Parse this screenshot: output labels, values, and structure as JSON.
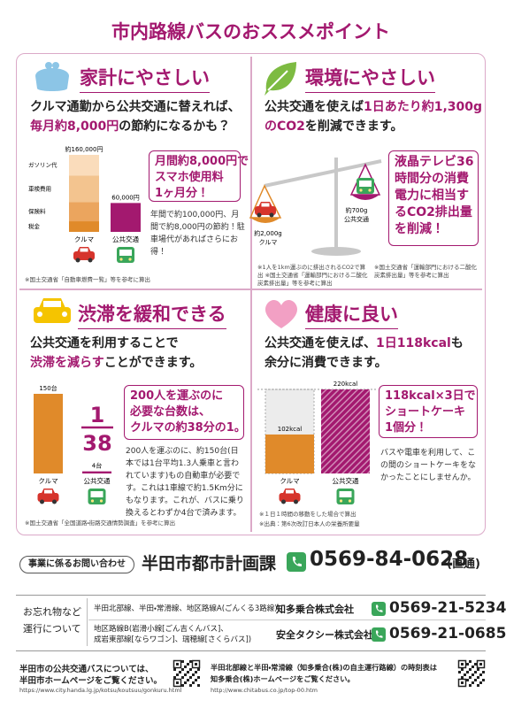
{
  "title": "市内路線バスのおススメポイント",
  "panels": [
    {
      "heading": "家計にやさしい",
      "body": [
        [
          "クルマ通勤から公共交通に替えれば、"
        ],
        [
          {
            "text": "毎月約8,000円",
            "color": "#a3196f"
          },
          "の節約になるかも？"
        ]
      ],
      "chart": {
        "type": "bar",
        "categories": [
          "クルマ",
          "公共交通"
        ],
        "values": [
          160000,
          60000
        ],
        "value_labels": [
          "約160,000円",
          "60,000円"
        ],
        "colors": [
          "#fbe6cf",
          "#a3196f"
        ],
        "segments": [
          {
            "name": "税金",
            "value": 22000,
            "color": "#e08a2a"
          },
          {
            "name": "保険料",
            "value": 40000,
            "color": "#eba55e"
          },
          {
            "name": "車検費用",
            "value": 55000,
            "color": "#f3c48f"
          },
          {
            "name": "ガソリン代",
            "value": 43000,
            "color": "#fadcbb"
          }
        ]
      },
      "callout": [
        "月間約8,000円で",
        "スマホ使用料",
        "1ヶ月分！"
      ],
      "note": "年間で約100,000円、月間で約8,000円の節約！駐車場代があればさらにお得！",
      "footnotes": [
        "※国土交通省「自動車燃費一覧」等を参考に算出"
      ]
    },
    {
      "heading": "環境にやさしい",
      "body": [
        [
          "公共交通を使えば",
          {
            "text": "1日あたり約1,300g",
            "color": "#a3196f"
          }
        ],
        [
          {
            "text": "のCO2",
            "color": "#a3196f"
          },
          "を削減できます。"
        ]
      ],
      "balance": {
        "left": [
          "約2,000g",
          "クルマ"
        ],
        "right": [
          "約700g",
          "公共交通"
        ]
      },
      "callout": [
        "液晶テレビ36",
        "時間分の消費",
        "電力に相当す",
        "るCO2排出量",
        "を削減！"
      ],
      "footnotes": [
        "※1人を1km運ぶのに排出されるCO2で算出 ※国土交通省「運輸部門における二酸化炭素排出量」等を参考に算出",
        "※国土交通省「運輸部門における二酸化炭素排出量」等を参考に算出"
      ]
    },
    {
      "heading": "渋滞を緩和できる",
      "body": [
        [
          "公共交通を利用することで"
        ],
        [
          {
            "text": "渋滞を減らす",
            "color": "#a3196f"
          },
          "ことができます。"
        ]
      ],
      "chart": {
        "type": "bar",
        "categories": [
          "クルマ",
          "公共交通"
        ],
        "values": [
          150,
          4
        ],
        "value_labels": [
          "150台",
          "4台"
        ],
        "colors": [
          "#e08a2a",
          "#a3196f"
        ],
        "fraction": [
          "1",
          "38"
        ]
      },
      "callout": [
        "200人を運ぶのに",
        "必要な台数は、",
        "クルマの約38分の1。"
      ],
      "note": "200人を運ぶのに、約150台(日本では1台平均1.3人乗車と言われています)もの自動車が必要です。これは1車線で約1.5Km分にもなります。これが、バスに乗り換えるとわずか4台で済みます。",
      "footnotes": [
        "※国土交通省「全国道路・街路交通情勢調査」を参考に算出"
      ]
    },
    {
      "heading": "健康に良い",
      "body": [
        [
          "公共交通を使えば、",
          {
            "text": "1日118kcal",
            "color": "#a3196f"
          },
          "も"
        ],
        [
          "余分に消費できます。"
        ]
      ],
      "chart": {
        "type": "bar",
        "categories": [
          "クルマ",
          "公共交通"
        ],
        "values": [
          102,
          220
        ],
        "value_labels": [
          "102kcal",
          "220kcal"
        ],
        "colors": [
          "#e08a2a",
          "#a3196f"
        ]
      },
      "callout": [
        "118kcal×3日で",
        "ショートケーキ",
        "1個分！"
      ],
      "note": "バスや電車を利用して、この間のショートケーキをなかったことにしませんか。",
      "footnotes": [
        "※１日１時間の移動をした場合で算出",
        "※出典：第6次改訂日本人の栄養所要量"
      ]
    }
  ],
  "contact": {
    "label": "事業に係るお問い合わせ",
    "office": "半田市都市計画課",
    "phone": "0569-84-0628",
    "phone_note": "(直通)"
  },
  "operators": {
    "label": [
      "お忘れ物など",
      "運行について"
    ],
    "rows": [
      {
        "routes": [
          "半田北部線、半田・常滑線、地区路線A(ごんくる3路線)"
        ],
        "company": "知多乗合株式会社",
        "phone": "0569-21-5234"
      },
      {
        "routes": [
          "地区路線B(岩滑小線[ごん吉くんバス]、",
          "成岩東部線[ならワゴン]、瑞穂線[さくらバス])"
        ],
        "company": "安全タクシー株式会社",
        "phone": "0569-21-0685"
      }
    ]
  },
  "footer": {
    "left": {
      "text": [
        "半田市の公共交通バスについては、",
        "半田市ホームページをご覧ください。"
      ],
      "url": "https://www.city.handa.lg.jp/kotsu/koutsuu/gonkuru.html"
    },
    "right": {
      "text": [
        "半田北部線と半田・常滑線（知多乗合(株)の自主運行路線）の時刻表は",
        "知多乗合(株)ホームページをご覧ください。"
      ],
      "url": "http://www.chitabus.co.jp/top-00.htm"
    }
  }
}
